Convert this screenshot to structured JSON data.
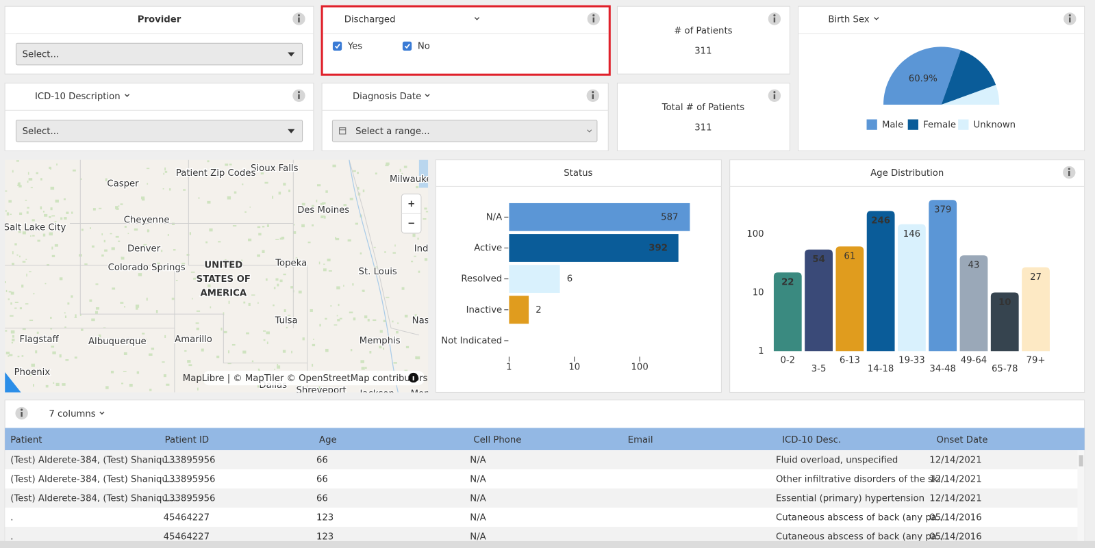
{
  "filters": {
    "provider": {
      "title": "Provider",
      "placeholder": "Select..."
    },
    "discharged": {
      "title": "Discharged",
      "options": [
        {
          "label": "Yes",
          "checked": true
        },
        {
          "label": "No",
          "checked": true
        }
      ]
    },
    "icd10_description": {
      "title": "ICD-10 Description",
      "placeholder": "Select..."
    },
    "diagnosis_date": {
      "title": "Diagnosis Date",
      "placeholder": "Select a range..."
    }
  },
  "kpis": [
    {
      "label": "# of Patients",
      "value": 311
    },
    {
      "label": "Total # of Patients",
      "value": 311
    }
  ],
  "chart_data": [
    {
      "type": "pie",
      "title": "Birth Sex",
      "semicircle": true,
      "categories": [
        "Male",
        "Female",
        "Unknown"
      ],
      "values": [
        60.9,
        28,
        11.1
      ],
      "value_labels": [
        "60.9%",
        null,
        null
      ],
      "colors": [
        "#5b96d6",
        "#0a5c99",
        "#d9f1fd"
      ]
    },
    {
      "type": "bar",
      "orientation": "horizontal",
      "title": "Status",
      "categories": [
        "N/A",
        "Active",
        "Resolved",
        "Inactive",
        "Not Indicated"
      ],
      "values": [
        587,
        392,
        6,
        2,
        null
      ],
      "colors": [
        "#5b96d6",
        "#0a5c99",
        "#d9f1fd",
        "#e09c1e",
        "#9aa8b8"
      ],
      "xlim": [
        1,
        1000
      ],
      "xticks": [
        1,
        10,
        100
      ],
      "log_scale": true
    },
    {
      "type": "bar",
      "orientation": "vertical",
      "title": "Age Distribution",
      "categories": [
        "0-2",
        "3-5",
        "6-13",
        "14-18",
        "19-33",
        "34-48",
        "49-64",
        "65-78",
        "79+"
      ],
      "values": [
        22,
        54,
        61,
        246,
        146,
        379,
        43,
        10,
        27
      ],
      "colors": [
        "#3a8a80",
        "#3a4a78",
        "#e09c1e",
        "#0a5c99",
        "#d9f1fd",
        "#5b96d6",
        "#9aa8b8",
        "#36444f",
        "#fde9c4"
      ],
      "ylim": [
        1,
        500
      ],
      "yticks": [
        1,
        10,
        100
      ],
      "log_scale": true
    }
  ],
  "map": {
    "title": "Patient Zip Codes",
    "places": [
      "Sioux Falls",
      "Milwaukee",
      "Casper",
      "Cheyenne",
      "Salt Lake City",
      "Des Moines",
      "Denver",
      "Colorado Springs",
      "Topeka",
      "St. Louis",
      "Indianapolis",
      "Tulsa",
      "Nashville",
      "Flagstaff",
      "Albuquerque",
      "Amarillo",
      "Memphis",
      "Phoenix",
      "Dallas",
      "Shreveport",
      "Jackson",
      "Montgomery"
    ],
    "country": [
      "UNITED",
      "STATES OF",
      "AMERICA"
    ],
    "zoom_in": "+",
    "zoom_out": "−",
    "attribution": "MapLibre | © MapTiler © OpenStreetMap contributors"
  },
  "table": {
    "toolbar": "7 columns",
    "columns": [
      "Patient",
      "Patient ID",
      "Age",
      "Cell Phone",
      "Email",
      "ICD-10 Desc.",
      "Onset Date"
    ],
    "rows": [
      [
        "(Test) Alderete-384, (Test) Shaniqu...",
        "133895956",
        "66",
        "N/A",
        null,
        "Fluid overload, unspecified",
        "12/14/2021"
      ],
      [
        "(Test) Alderete-384, (Test) Shaniqu...",
        "133895956",
        "66",
        "N/A",
        null,
        "Other infiltrative disorders of the ski...",
        "12/14/2021"
      ],
      [
        "(Test) Alderete-384, (Test) Shaniqu...",
        "133895956",
        "66",
        "N/A",
        null,
        "Essential (primary) hypertension",
        "12/14/2021"
      ],
      [
        ".",
        "45464227",
        "123",
        "N/A",
        null,
        "Cutaneous abscess of back (any pa...",
        "05/14/2016"
      ],
      [
        ".",
        "45464227",
        "123",
        "N/A",
        null,
        "Cutaneous abscess of back (any pa...",
        "05/14/2016"
      ]
    ]
  }
}
